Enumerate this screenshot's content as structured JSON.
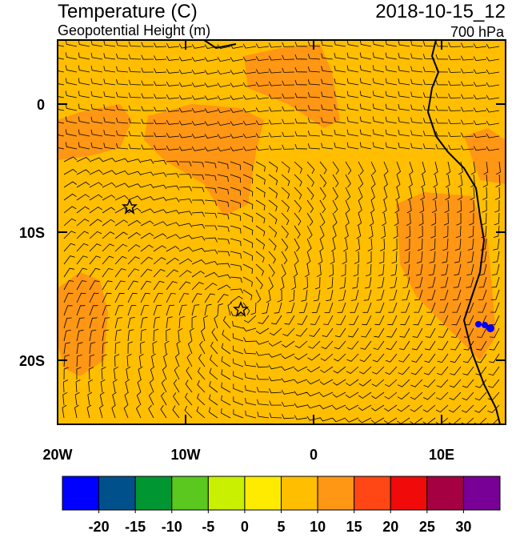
{
  "title": "Temperature (C)",
  "subtitle": "Geopotential Height (m)",
  "date": "2018-10-15_12",
  "level": "700 hPa",
  "map": {
    "xlim": [
      -20,
      15
    ],
    "ylim": [
      -25,
      5
    ],
    "xticks": [
      {
        "value": -20,
        "label": "20W"
      },
      {
        "value": -10,
        "label": "10W"
      },
      0,
      {
        "value": 10,
        "label": "10E"
      }
    ],
    "yticks": [
      0,
      {
        "value": -10,
        "label": "10S"
      },
      {
        "value": -20,
        "label": "20S"
      }
    ]
  },
  "colorbar": {
    "colors": [
      "#0000ff",
      "#00508c",
      "#009632",
      "#5ac81e",
      "#c8f000",
      "#ffeb00",
      "#ffbe00",
      "#ff9614",
      "#ff4614",
      "#f00a0a",
      "#a50041",
      "#780096"
    ],
    "ticks": [
      -20,
      -15,
      -10,
      -5,
      0,
      5,
      10,
      15,
      20,
      25,
      30
    ]
  }
}
